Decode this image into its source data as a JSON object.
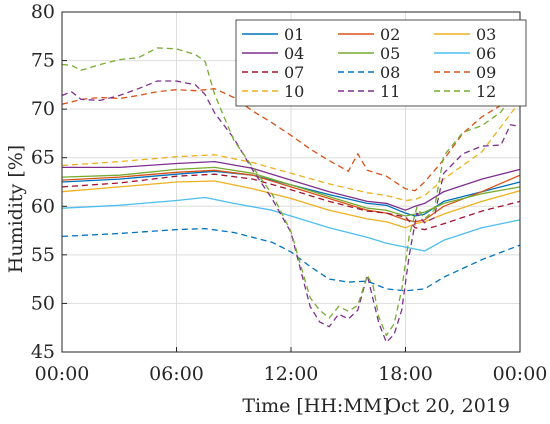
{
  "chart_data": {
    "type": "line",
    "title": "",
    "xlabel": "Time [HH:MM]",
    "x_annotation": "Oct 20, 2019",
    "ylabel": "Humidity [%]",
    "xlim": [
      0,
      24
    ],
    "ylim": [
      45,
      80
    ],
    "x_ticks": [
      0,
      6,
      12,
      18,
      24
    ],
    "x_tick_labels": [
      "00:00",
      "06:00",
      "12:00",
      "18:00",
      "00:00"
    ],
    "y_ticks": [
      45,
      50,
      55,
      60,
      65,
      70,
      75,
      80
    ],
    "y_tick_labels": [
      "45",
      "50",
      "55",
      "60",
      "65",
      "70",
      "75",
      "80"
    ],
    "grid": true,
    "legend_position": "top-right",
    "legend_columns": 3,
    "series": [
      {
        "name": "01",
        "color": "#0072BD",
        "dash": "solid",
        "x": [
          0,
          3,
          6,
          8,
          10,
          12,
          14,
          16,
          17,
          18,
          18.5,
          19,
          20,
          22,
          24
        ],
        "y": [
          62.5,
          62.8,
          63.3,
          63.6,
          63.2,
          62.2,
          61.2,
          60.3,
          60.1,
          59.3,
          59,
          59.2,
          60.5,
          61.5,
          62.5
        ]
      },
      {
        "name": "02",
        "color": "#D95319",
        "dash": "solid",
        "x": [
          0,
          3,
          6,
          8,
          10,
          12,
          14,
          16,
          17,
          18,
          18.5,
          19,
          20,
          22,
          24
        ],
        "y": [
          62.7,
          63,
          63.5,
          63.7,
          63.2,
          62,
          60.8,
          59.6,
          59.3,
          58.6,
          58.4,
          58.6,
          60,
          61.5,
          63.2
        ]
      },
      {
        "name": "03",
        "color": "#EDB120",
        "dash": "solid",
        "x": [
          0,
          3,
          6,
          8,
          10,
          12,
          14,
          16,
          17,
          18,
          18.5,
          19,
          20,
          22,
          24
        ],
        "y": [
          61.5,
          62,
          62.5,
          62.6,
          61.8,
          60.8,
          59.6,
          58.7,
          58.4,
          57.8,
          58.2,
          58.4,
          59.2,
          60.5,
          61.6
        ]
      },
      {
        "name": "04",
        "color": "#7E2F8E",
        "dash": "solid",
        "x": [
          0,
          3,
          6,
          8,
          10,
          12,
          14,
          16,
          17,
          18,
          18.5,
          19,
          20,
          22,
          24
        ],
        "y": [
          64,
          64,
          64.4,
          64.6,
          63.9,
          62.7,
          61.5,
          60.5,
          60.3,
          59.6,
          60,
          60.3,
          61.5,
          62.8,
          63.8
        ]
      },
      {
        "name": "05",
        "color": "#77AC30",
        "dash": "solid",
        "x": [
          0,
          3,
          6,
          8,
          10,
          12,
          14,
          16,
          17,
          18,
          18.5,
          19,
          20,
          22,
          24
        ],
        "y": [
          63,
          63.2,
          63.8,
          64,
          63.4,
          62.2,
          61,
          59.8,
          59.6,
          59,
          59.2,
          59.4,
          60.3,
          61.3,
          62
        ]
      },
      {
        "name": "06",
        "color": "#4DBEEE",
        "dash": "solid",
        "x": [
          0,
          3,
          6,
          7.5,
          9,
          11,
          12,
          14,
          16,
          17,
          18,
          19,
          20,
          22,
          24
        ],
        "y": [
          59.8,
          60.1,
          60.6,
          60.9,
          60.3,
          59.6,
          59,
          57.8,
          56.8,
          56.2,
          55.8,
          55.4,
          56.5,
          57.8,
          58.6
        ]
      },
      {
        "name": "07",
        "color": "#A2142F",
        "dash": "dashed",
        "x": [
          0,
          3,
          6,
          8,
          10,
          12,
          14,
          16,
          17,
          18,
          18.5,
          19,
          20,
          22,
          24
        ],
        "y": [
          62,
          62.4,
          63.1,
          63.3,
          62.8,
          61.7,
          60.5,
          59.5,
          59.3,
          58.9,
          57.8,
          57.6,
          58.2,
          59.5,
          60.5
        ]
      },
      {
        "name": "08",
        "color": "#0072BD",
        "dash": "dashed",
        "x": [
          0,
          3,
          6,
          7.5,
          9,
          11,
          12,
          13,
          14,
          15,
          16,
          17,
          18,
          19,
          20,
          22,
          24
        ],
        "y": [
          56.9,
          57.2,
          57.6,
          57.7,
          57.3,
          56.3,
          55.3,
          53.8,
          52.5,
          52.2,
          52.3,
          51.5,
          51.3,
          51.5,
          52.7,
          54.5,
          56
        ]
      },
      {
        "name": "09",
        "color": "#D95319",
        "dash": "dashed",
        "x": [
          0,
          1,
          2,
          3,
          4,
          5,
          6,
          7,
          8,
          9,
          10,
          11,
          12,
          13,
          14,
          15,
          15.5,
          16,
          17,
          18,
          18.5,
          19,
          20,
          21,
          22,
          23,
          24
        ],
        "y": [
          70.5,
          71,
          71.2,
          71.1,
          71.4,
          71.8,
          72,
          71.9,
          72.1,
          71.2,
          69.8,
          68.6,
          67.3,
          65.9,
          64.7,
          63.6,
          65.4,
          63.7,
          63.1,
          61.8,
          61.6,
          62.5,
          64.8,
          67.5,
          69.2,
          70.4,
          71.1
        ]
      },
      {
        "name": "10",
        "color": "#EDB120",
        "dash": "dashed",
        "x": [
          0,
          3,
          6,
          8,
          10,
          12,
          14,
          16,
          17,
          18,
          18.5,
          19,
          20,
          22,
          24
        ],
        "y": [
          64.2,
          64.6,
          65.1,
          65.3,
          64.5,
          63.4,
          62.3,
          61.4,
          61.1,
          60.6,
          60.7,
          61.1,
          62.8,
          65.6,
          70.8
        ]
      },
      {
        "name": "11",
        "color": "#7E2F8E",
        "dash": "dashed",
        "x": [
          0,
          0.5,
          1,
          2,
          3,
          4,
          5,
          6,
          7,
          7.5,
          8,
          9,
          10,
          11,
          12,
          12.5,
          13,
          13.5,
          14,
          14.5,
          15,
          15.5,
          16,
          16.3,
          16.6,
          17,
          17.4,
          17.8,
          18.2,
          18.6,
          19,
          19.5,
          20,
          21,
          22,
          23,
          23.5,
          24
        ],
        "y": [
          71.4,
          71.8,
          71,
          70.9,
          71.4,
          72.1,
          72.9,
          72.9,
          72.5,
          71.5,
          69.6,
          67,
          63.7,
          60.8,
          57.3,
          53.5,
          49.7,
          48.1,
          47.6,
          48.9,
          48.4,
          49.3,
          52.9,
          50.4,
          48,
          46,
          46.8,
          49.3,
          55,
          59.3,
          58.3,
          58.8,
          63.4,
          65.4,
          66.2,
          66.3,
          68.4,
          68.2
        ]
      },
      {
        "name": "12",
        "color": "#77AC30",
        "dash": "dashed",
        "x": [
          0,
          0.5,
          1,
          2,
          3,
          4,
          5,
          6,
          7,
          7.5,
          8,
          9,
          10,
          11,
          12,
          12.5,
          13,
          13.5,
          14,
          14.5,
          15,
          15.5,
          16,
          16.3,
          16.6,
          17,
          17.4,
          17.8,
          18.2,
          18.6,
          19,
          19.5,
          20,
          21,
          22,
          23,
          23.5,
          24
        ],
        "y": [
          74.6,
          74.5,
          74,
          74.6,
          75.1,
          75.3,
          76.3,
          76.2,
          75.6,
          74.9,
          71.5,
          66.8,
          64,
          61.3,
          57.4,
          54,
          50.6,
          49.3,
          48.5,
          49.7,
          49.2,
          49.8,
          52.9,
          51.8,
          48.6,
          46.7,
          47.9,
          51.4,
          57,
          59.9,
          58.7,
          59.6,
          65.2,
          67.6,
          68.3,
          69.7,
          71.2,
          70.9
        ]
      }
    ]
  }
}
